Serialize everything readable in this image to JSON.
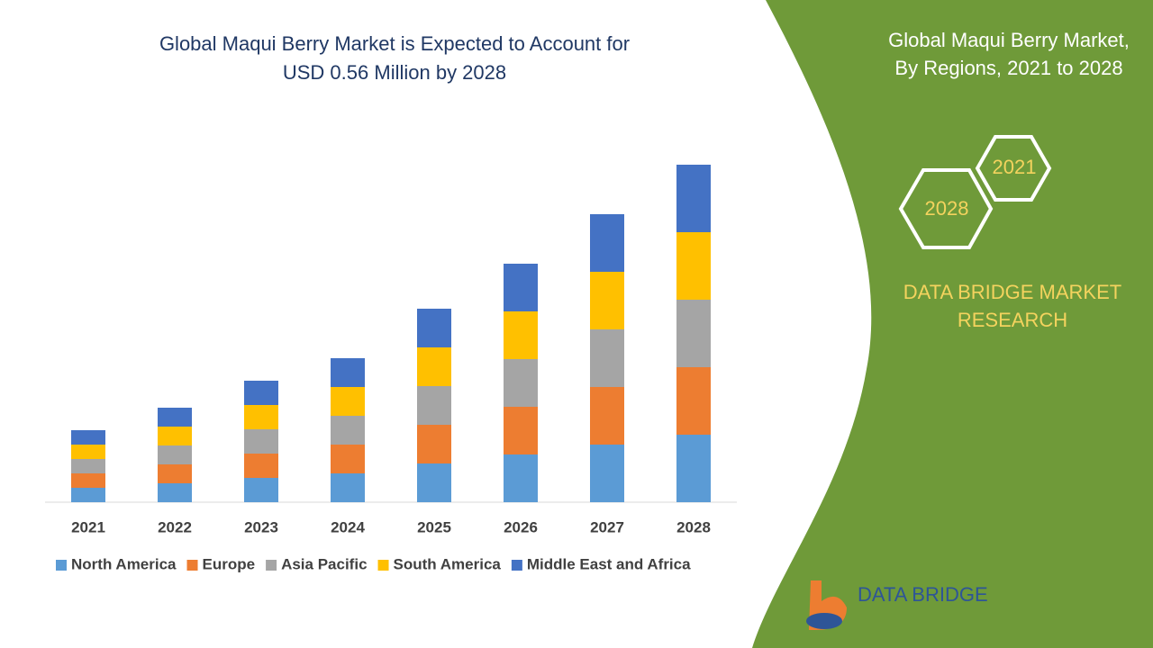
{
  "chart_data": {
    "type": "bar",
    "stacked": true,
    "title": [
      "Global Maqui Berry Market is Expected to Account for",
      "USD 0.56 Million by 2028"
    ],
    "categories": [
      "2021",
      "2022",
      "2023",
      "2024",
      "2025",
      "2026",
      "2027",
      "2028"
    ],
    "series": [
      {
        "name": "North America",
        "color": "#5b9bd5",
        "values": [
          16,
          21,
          27,
          32,
          43,
          53,
          64,
          75
        ]
      },
      {
        "name": "Europe",
        "color": "#ed7d31",
        "values": [
          16,
          21,
          27,
          32,
          43,
          53,
          64,
          75
        ]
      },
      {
        "name": "Asia Pacific",
        "color": "#a5a5a5",
        "values": [
          16,
          21,
          27,
          32,
          43,
          53,
          64,
          75
        ]
      },
      {
        "name": "South America",
        "color": "#ffc000",
        "values": [
          16,
          21,
          27,
          32,
          43,
          53,
          64,
          75
        ]
      },
      {
        "name": "Middle East and Africa",
        "color": "#4472c4",
        "values": [
          16,
          21,
          27,
          32,
          43,
          53,
          64,
          75
        ]
      }
    ],
    "ylim": [
      0,
      400
    ],
    "grid": false,
    "legend": "bottom"
  },
  "sidebar": {
    "title": [
      "Global Maqui Berry Market,",
      "By Regions, 2021 to 2028"
    ],
    "hexagons": [
      "2021",
      "2028"
    ],
    "brand": [
      "DATA BRIDGE MARKET",
      "RESEARCH"
    ],
    "logo_text": "DATA BRIDGE"
  }
}
